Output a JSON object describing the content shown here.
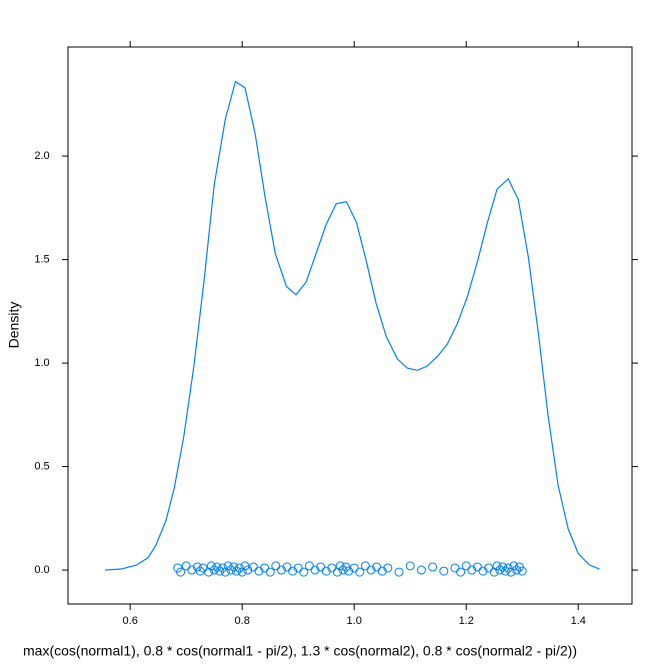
{
  "chart_data": {
    "type": "density",
    "x_label": "max(cos(normal1), 0.8 * cos(normal1 - pi/2), 1.3 * cos(normal2), 0.8 * cos(normal2 - pi/2))",
    "y_label": "Density",
    "color": "#0080ff",
    "xlim": [
      0.489,
      1.496
    ],
    "ylim": [
      -0.164,
      2.527
    ],
    "xticks": [
      0.6,
      0.8,
      {
        "value": 1,
        "label": "1.0"
      },
      1.2,
      1.4
    ],
    "yticks": [
      {
        "value": 0,
        "label": "0.0"
      },
      0.5,
      {
        "value": 1,
        "label": "1.0"
      },
      1.5,
      {
        "value": 2,
        "label": "2.0"
      }
    ],
    "x": [
      0.555,
      0.584,
      0.611,
      0.632,
      0.646,
      0.664,
      0.679,
      0.696,
      0.714,
      0.732,
      0.75,
      0.77,
      0.788,
      0.805,
      0.823,
      0.841,
      0.859,
      0.879,
      0.896,
      0.914,
      0.932,
      0.95,
      0.968,
      0.986,
      1.004,
      1.021,
      1.039,
      1.057,
      1.077,
      1.095,
      1.113,
      1.13,
      1.148,
      1.166,
      1.184,
      1.202,
      1.22,
      1.238,
      1.255,
      1.275,
      1.293,
      1.311,
      1.329,
      1.346,
      1.364,
      1.382,
      1.4,
      1.42,
      1.438
    ],
    "values": [
      0.0,
      0.005,
      0.024,
      0.06,
      0.12,
      0.24,
      0.4,
      0.65,
      0.99,
      1.4,
      1.86,
      2.18,
      2.36,
      2.33,
      2.11,
      1.8,
      1.53,
      1.37,
      1.33,
      1.39,
      1.53,
      1.67,
      1.77,
      1.78,
      1.68,
      1.5,
      1.29,
      1.13,
      1.02,
      0.975,
      0.965,
      0.985,
      1.03,
      1.09,
      1.19,
      1.32,
      1.49,
      1.68,
      1.84,
      1.89,
      1.79,
      1.51,
      1.14,
      0.75,
      0.41,
      0.2,
      0.08,
      0.025,
      0.005
    ],
    "rug": {
      "x": [
        0.685,
        0.69,
        0.7,
        0.71,
        0.72,
        0.725,
        0.73,
        0.74,
        0.745,
        0.75,
        0.755,
        0.76,
        0.765,
        0.77,
        0.775,
        0.78,
        0.785,
        0.79,
        0.795,
        0.8,
        0.805,
        0.81,
        0.82,
        0.83,
        0.84,
        0.85,
        0.86,
        0.87,
        0.88,
        0.89,
        0.9,
        0.91,
        0.92,
        0.93,
        0.94,
        0.95,
        0.96,
        0.97,
        0.975,
        0.98,
        0.985,
        0.99,
        1.0,
        1.01,
        1.02,
        1.03,
        1.04,
        1.05,
        1.06,
        1.08,
        1.1,
        1.12,
        1.14,
        1.16,
        1.18,
        1.19,
        1.2,
        1.21,
        1.22,
        1.23,
        1.24,
        1.25,
        1.255,
        1.26,
        1.265,
        1.27,
        1.275,
        1.28,
        1.285,
        1.29,
        1.295,
        1.3
      ],
      "y": [
        0.01,
        -0.01,
        0.02,
        0,
        0.015,
        -0.005,
        0.01,
        -0.01,
        0.02,
        0,
        0.015,
        -0.005,
        0.01,
        -0.01,
        0.02,
        0,
        0.015,
        -0.005,
        0.01,
        -0.01,
        0.02,
        0,
        0.015,
        -0.005,
        0.01,
        -0.01,
        0.02,
        0,
        0.015,
        -0.005,
        0.01,
        -0.01,
        0.02,
        0,
        0.015,
        -0.005,
        0.01,
        -0.01,
        0.02,
        0,
        0.015,
        -0.005,
        0.01,
        -0.01,
        0.02,
        0,
        0.015,
        -0.005,
        0.01,
        -0.01,
        0.02,
        0,
        0.015,
        -0.005,
        0.01,
        -0.01,
        0.02,
        0,
        0.015,
        -0.005,
        0.01,
        -0.01,
        0.02,
        0,
        0.015,
        -0.005,
        0.01,
        -0.01,
        0.02,
        0,
        0.015,
        -0.005
      ]
    }
  }
}
